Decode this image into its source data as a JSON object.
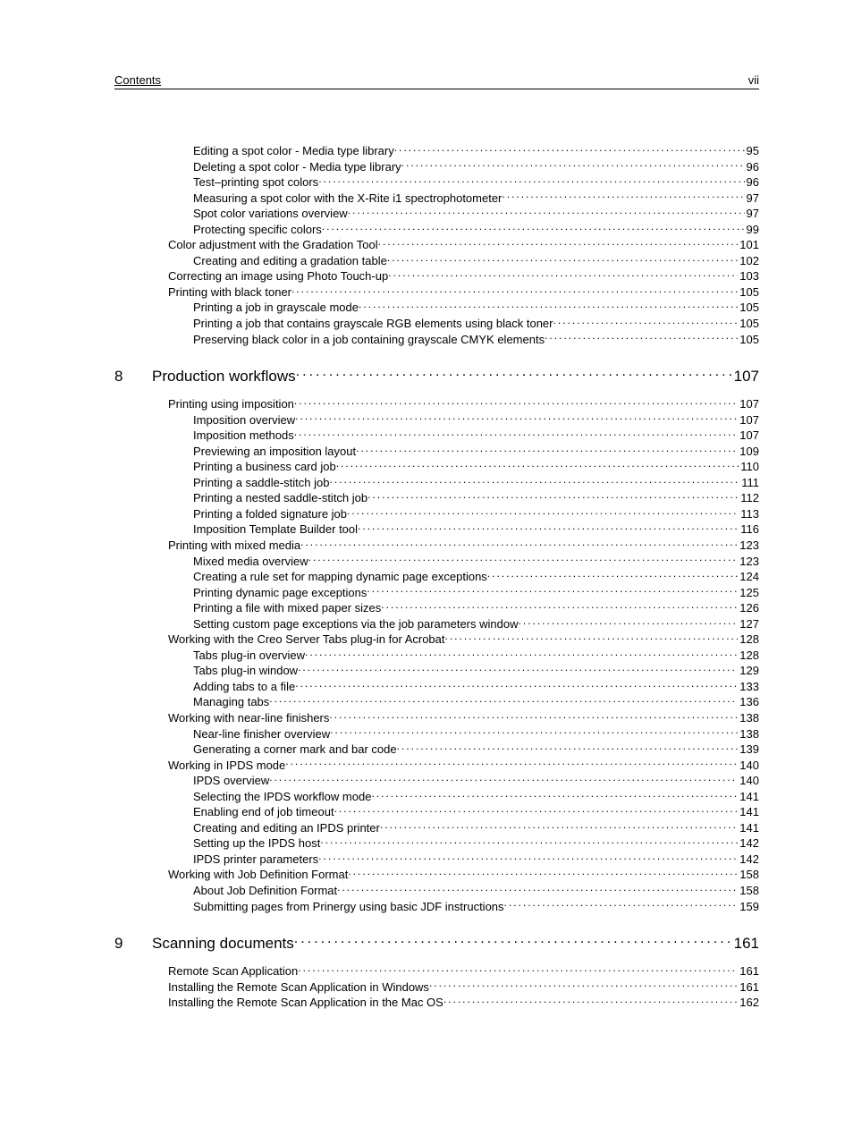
{
  "header": {
    "left": "Contents",
    "right": "vii"
  },
  "toc": [
    {
      "type": "item",
      "level": 1,
      "text": "Editing a spot color - Media type library",
      "page": "95"
    },
    {
      "type": "item",
      "level": 1,
      "text": "Deleting a spot color - Media type library",
      "page": "96"
    },
    {
      "type": "item",
      "level": 1,
      "text": "Test–printing spot colors",
      "page": "96"
    },
    {
      "type": "item",
      "level": 1,
      "text": "Measuring a spot color with the X-Rite i1 spectrophotometer",
      "page": "97"
    },
    {
      "type": "item",
      "level": 1,
      "text": "Spot color variations overview",
      "page": "97"
    },
    {
      "type": "item",
      "level": 1,
      "text": "Protecting specific colors ",
      "page": "99"
    },
    {
      "type": "item",
      "level": 0,
      "text": "Color adjustment with the Gradation Tool ",
      "page": "101"
    },
    {
      "type": "item",
      "level": 1,
      "text": "Creating and editing a gradation table",
      "page": "102"
    },
    {
      "type": "item",
      "level": 0,
      "text": "Correcting an image using Photo Touch-up",
      "page": "103"
    },
    {
      "type": "item",
      "level": 0,
      "text": "Printing with black toner",
      "page": "105"
    },
    {
      "type": "item",
      "level": 1,
      "text": "Printing a job in grayscale mode",
      "page": "105"
    },
    {
      "type": "item",
      "level": 1,
      "text": "Printing a job that contains grayscale RGB elements using black toner ",
      "page": "105"
    },
    {
      "type": "item",
      "level": 1,
      "text": "Preserving black color in a job containing grayscale CMYK elements",
      "page": "105"
    },
    {
      "type": "chapter",
      "num": "8",
      "text": "Production workflows",
      "page": "107"
    },
    {
      "type": "item",
      "level": 0,
      "text": "Printing using imposition",
      "page": "107"
    },
    {
      "type": "item",
      "level": 1,
      "text": "Imposition overview",
      "page": "107"
    },
    {
      "type": "item",
      "level": 1,
      "text": "Imposition methods",
      "page": "107"
    },
    {
      "type": "item",
      "level": 1,
      "text": "Previewing an imposition layout ",
      "page": "109"
    },
    {
      "type": "item",
      "level": 1,
      "text": "Printing a business card job",
      "page": "110"
    },
    {
      "type": "item",
      "level": 1,
      "text": "Printing a saddle-stitch job",
      "page": "111"
    },
    {
      "type": "item",
      "level": 1,
      "text": "Printing a nested saddle-stitch job",
      "page": "112"
    },
    {
      "type": "item",
      "level": 1,
      "text": "Printing a folded signature job",
      "page": "113"
    },
    {
      "type": "item",
      "level": 1,
      "text": "Imposition Template Builder tool",
      "page": "116"
    },
    {
      "type": "item",
      "level": 0,
      "text": "Printing with mixed media",
      "page": "123"
    },
    {
      "type": "item",
      "level": 1,
      "text": "Mixed media overview",
      "page": "123"
    },
    {
      "type": "item",
      "level": 1,
      "text": "Creating a rule set for mapping dynamic page exceptions",
      "page": "124"
    },
    {
      "type": "item",
      "level": 1,
      "text": "Printing dynamic page exceptions",
      "page": "125"
    },
    {
      "type": "item",
      "level": 1,
      "text": "Printing a file with mixed paper sizes",
      "page": "126"
    },
    {
      "type": "item",
      "level": 1,
      "text": "Setting custom page exceptions via the job parameters window",
      "page": "127"
    },
    {
      "type": "item",
      "level": 0,
      "text": "Working with the Creo Server Tabs plug-in for Acrobat",
      "page": "128"
    },
    {
      "type": "item",
      "level": 1,
      "text": "Tabs plug-in overview",
      "page": "128"
    },
    {
      "type": "item",
      "level": 1,
      "text": "Tabs plug-in window",
      "page": "129"
    },
    {
      "type": "item",
      "level": 1,
      "text": "Adding tabs to a file",
      "page": "133"
    },
    {
      "type": "item",
      "level": 1,
      "text": "Managing tabs",
      "page": "136"
    },
    {
      "type": "item",
      "level": 0,
      "text": "Working with near-line finishers",
      "page": "138"
    },
    {
      "type": "item",
      "level": 1,
      "text": "Near-line finisher overview",
      "page": "138"
    },
    {
      "type": "item",
      "level": 1,
      "text": "Generating a corner mark and bar code",
      "page": "139"
    },
    {
      "type": "item",
      "level": 0,
      "text": "Working in IPDS mode",
      "page": "140"
    },
    {
      "type": "item",
      "level": 1,
      "text": "IPDS overview",
      "page": "140"
    },
    {
      "type": "item",
      "level": 1,
      "text": "Selecting the IPDS workflow mode",
      "page": "141"
    },
    {
      "type": "item",
      "level": 1,
      "text": "Enabling end of job timeout",
      "page": "141"
    },
    {
      "type": "item",
      "level": 1,
      "text": "Creating and editing an IPDS printer",
      "page": "141"
    },
    {
      "type": "item",
      "level": 1,
      "text": "Setting up the IPDS host",
      "page": "142"
    },
    {
      "type": "item",
      "level": 1,
      "text": "IPDS printer parameters",
      "page": "142"
    },
    {
      "type": "item",
      "level": 0,
      "text": "Working with Job Definition Format",
      "page": "158"
    },
    {
      "type": "item",
      "level": 1,
      "text": "About Job Definition Format",
      "page": "158"
    },
    {
      "type": "item",
      "level": 1,
      "text": "Submitting pages from Prinergy using basic JDF instructions",
      "page": "159"
    },
    {
      "type": "chapter",
      "num": "9",
      "text": "Scanning documents",
      "page": "161"
    },
    {
      "type": "item",
      "level": 0,
      "text": "Remote Scan Application",
      "page": "161"
    },
    {
      "type": "item",
      "level": 0,
      "text": "Installing the Remote Scan Application in Windows",
      "page": "161"
    },
    {
      "type": "item",
      "level": 0,
      "text": "Installing the Remote Scan Application in the Mac OS",
      "page": "162"
    }
  ]
}
